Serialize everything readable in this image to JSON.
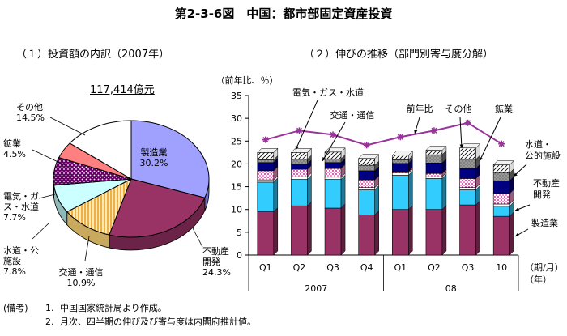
{
  "figure_title": "第2-3-6図　中国：都市部固定資産投資",
  "pie": {
    "subtitle": "（１）投資額の内訳（2007年）",
    "total": "117,414億元"
  },
  "bar": {
    "subtitle": "（２）伸びの推移（部門別寄与度分解）"
  },
  "notes": {
    "head": "(備考)",
    "items": [
      {
        "num": "1.",
        "text": "中国国家統計局より作成。"
      },
      {
        "num": "2.",
        "text": "月次、四半期の伸び及び寄与度は内閣府推計値。"
      }
    ]
  },
  "chart_data": [
    {
      "type": "pie",
      "slices": [
        {
          "label": "製造業",
          "value": 30.2,
          "value_label": "30.2%",
          "color": "#a0a0ff"
        },
        {
          "label": "不動産\n開発",
          "value": 24.3,
          "value_label": "24.3%",
          "color": "#993366"
        },
        {
          "label": "交通・通信",
          "value": 10.9,
          "value_label": "10.9%",
          "color": "#fff2cc"
        },
        {
          "label": "水道・公\n施設",
          "value": 7.8,
          "value_label": "7.8%",
          "color": "#ccffff"
        },
        {
          "label": "電気・ガ\nス・水道",
          "value": 7.7,
          "value_label": "7.7%",
          "color": "#660066"
        },
        {
          "label": "鉱業",
          "value": 4.5,
          "value_label": "4.5%",
          "color": "#ff8080"
        },
        {
          "label": "その他",
          "value": 14.5,
          "value_label": "14.5%",
          "color": "#ffffff"
        }
      ]
    },
    {
      "type": "bar",
      "ylabel": "（前年比、％）",
      "ylim": [
        0,
        35
      ],
      "yticks": [
        0,
        5,
        10,
        15,
        20,
        25,
        30,
        35
      ],
      "categories": [
        "Q1",
        "Q2",
        "Q3",
        "Q4",
        "Q1",
        "Q2",
        "Q3",
        "10"
      ],
      "x_groups": [
        {
          "label": "2007",
          "span": [
            0,
            3
          ]
        },
        {
          "label": "08",
          "span": [
            4,
            7
          ]
        }
      ],
      "x_unit_label": [
        "（期/月）",
        "（年）"
      ],
      "series": [
        {
          "name": "製造業",
          "color": "#993366",
          "values": [
            9.5,
            10.8,
            10.3,
            8.8,
            10.0,
            10.0,
            11.0,
            8.5
          ]
        },
        {
          "name": "不動産開発",
          "color": "#33ccff",
          "values": [
            6.5,
            5.8,
            6.3,
            5.5,
            7.5,
            6.8,
            3.3,
            2.2
          ]
        },
        {
          "name": "交通・通信",
          "color": "#ffffff",
          "values": [
            0.5,
            0.6,
            0.5,
            0.5,
            0.5,
            0.4,
            0.5,
            0.5
          ]
        },
        {
          "name": "水道・公的施設",
          "color": "#ff99cc",
          "values": [
            2.0,
            1.6,
            1.9,
            1.7,
            0.3,
            0.7,
            2.0,
            2.3
          ]
        },
        {
          "name": "電気・ガス・水道",
          "color": "#000080",
          "values": [
            1.8,
            1.2,
            1.3,
            2.0,
            1.8,
            2.3,
            2.2,
            2.8
          ]
        },
        {
          "name": "鉱業",
          "color": "#808080",
          "values": [
            0.6,
            1.0,
            0.8,
            1.2,
            0.8,
            1.8,
            2.0,
            1.7
          ]
        },
        {
          "name": "その他",
          "color": "#ffffff",
          "values": [
            1.6,
            1.5,
            1.5,
            1.5,
            1.0,
            1.0,
            2.5,
            1.8
          ]
        }
      ],
      "line": {
        "name": "前年比",
        "color": "#993399",
        "values": [
          25.3,
          27.3,
          26.4,
          24.1,
          25.9,
          27.3,
          29.0,
          24.4
        ]
      },
      "annotations": [
        "電気・ガス・水道",
        "交通・通信",
        "前年比",
        "その他",
        "鉱業",
        "水道・\n公的施設",
        "不動産\n開発",
        "製造業"
      ]
    }
  ]
}
